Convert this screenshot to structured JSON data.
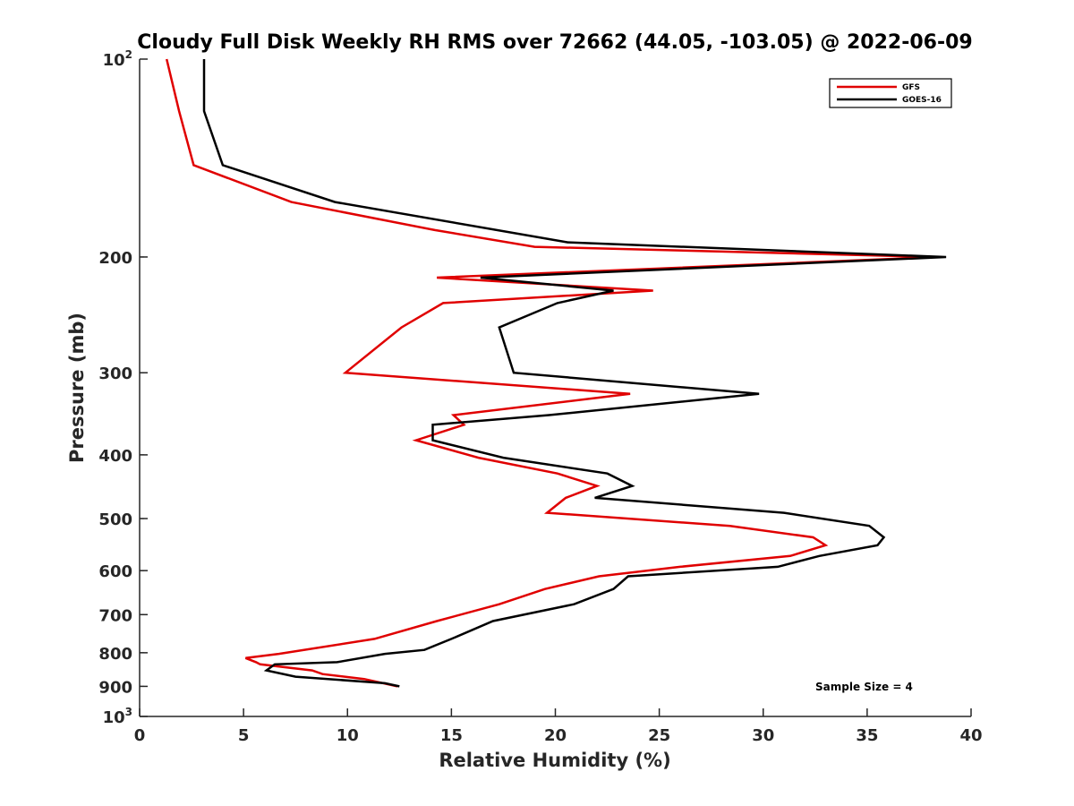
{
  "chart_data": {
    "type": "line",
    "title": "Cloudy Full Disk Weekly RH RMS over 72662 (44.05, -103.05) @ 2022-06-09",
    "xlabel": "Relative Humidity (%)",
    "ylabel": "Pressure (mb)",
    "xlim": [
      0,
      40
    ],
    "ylim": [
      100,
      1000
    ],
    "y_scale": "log",
    "y_reversed": true,
    "grid": false,
    "legend_position": "top-right",
    "x_ticks": [
      "0",
      "5",
      "10",
      "15",
      "20",
      "25",
      "30",
      "35",
      "40"
    ],
    "y_ticks": [
      {
        "value": 100,
        "label": "10",
        "sup": "2"
      },
      {
        "value": 200,
        "label": "200",
        "sup": ""
      },
      {
        "value": 300,
        "label": "300",
        "sup": ""
      },
      {
        "value": 400,
        "label": "400",
        "sup": ""
      },
      {
        "value": 500,
        "label": "500",
        "sup": ""
      },
      {
        "value": 600,
        "label": "600",
        "sup": ""
      },
      {
        "value": 700,
        "label": "700",
        "sup": ""
      },
      {
        "value": 800,
        "label": "800",
        "sup": ""
      },
      {
        "value": 900,
        "label": "900",
        "sup": ""
      },
      {
        "value": 1000,
        "label": "10",
        "sup": "3"
      }
    ],
    "annotation": "Sample Size = 4",
    "series": [
      {
        "name": "GFS",
        "color": "#e00000",
        "x": [
          1.3,
          1.9,
          2.6,
          7.3,
          14.2,
          19.0,
          38.4,
          14.3,
          24.7,
          14.6,
          12.6,
          9.9,
          23.6,
          15.1,
          15.6,
          13.3,
          16.3,
          20.1,
          22.0,
          20.5,
          19.6,
          28.4,
          32.4,
          33.0,
          31.3,
          26.0,
          22.1,
          19.5,
          17.3,
          14.3,
          11.3,
          6.7,
          5.1,
          5.6,
          5.8,
          8.3,
          8.8,
          10.8,
          12.4
        ],
        "y": [
          100,
          120,
          145,
          165,
          182,
          193,
          200,
          215,
          225,
          235,
          256,
          300,
          323,
          348,
          360,
          380,
          404,
          427,
          446,
          465,
          490,
          513,
          534,
          549,
          570,
          592,
          612,
          640,
          675,
          716,
          762,
          803,
          815,
          827,
          833,
          851,
          862,
          877,
          900
        ]
      },
      {
        "name": "GOES-16",
        "color": "#000000",
        "x": [
          3.1,
          3.1,
          4.0,
          9.4,
          20.6,
          38.8,
          16.4,
          22.8,
          20.1,
          17.3,
          18.0,
          29.8,
          19.7,
          14.1,
          14.1,
          17.5,
          22.5,
          23.7,
          21.9,
          31.0,
          35.1,
          35.8,
          35.5,
          32.7,
          30.7,
          23.5,
          22.8,
          20.9,
          17.0,
          15.0,
          13.7,
          11.8,
          9.5,
          6.5,
          6.1,
          7.5,
          11.8,
          12.5
        ],
        "y": [
          100,
          120,
          145,
          165,
          190,
          200,
          215,
          225,
          235,
          256,
          300,
          323,
          348,
          360,
          380,
          404,
          427,
          446,
          465,
          490,
          513,
          534,
          549,
          570,
          592,
          612,
          640,
          675,
          716,
          762,
          792,
          803,
          827,
          833,
          851,
          870,
          890,
          900
        ]
      }
    ]
  }
}
